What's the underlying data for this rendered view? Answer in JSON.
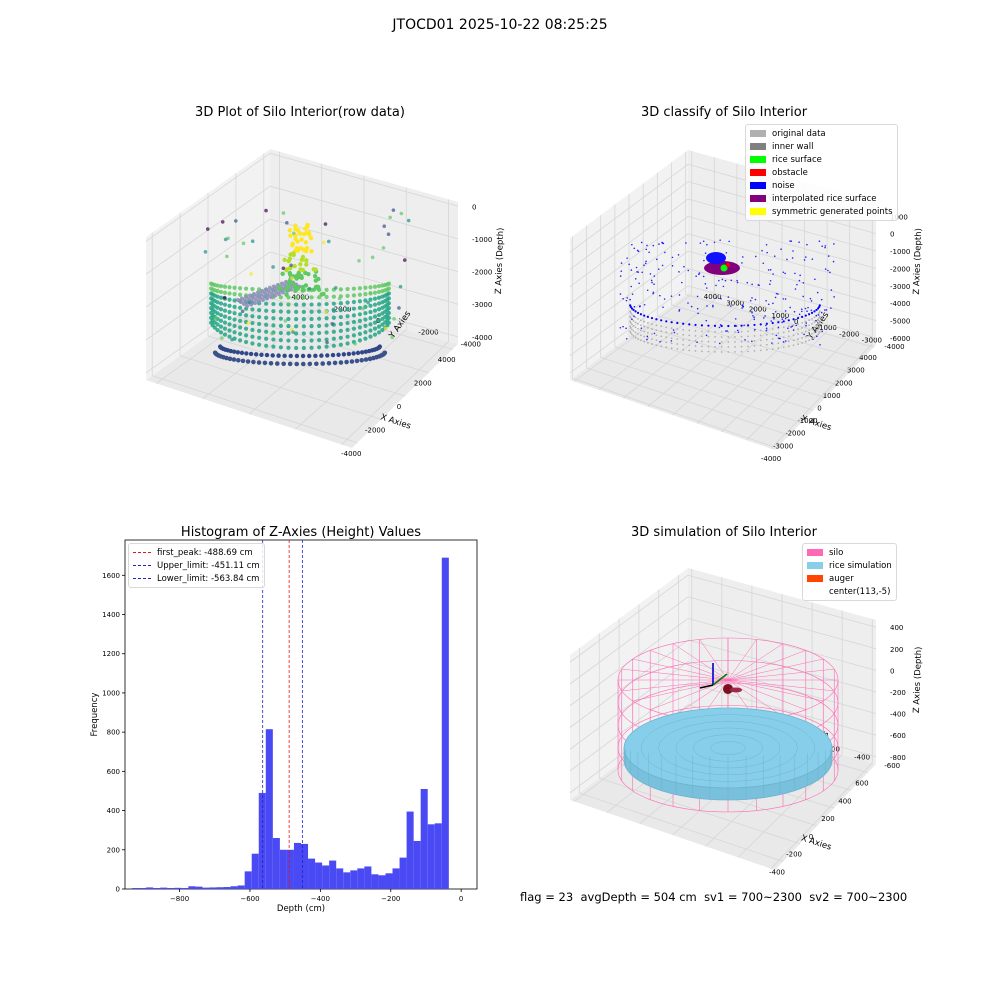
{
  "figure": {
    "title": "JTOCD01 2025-10-22 08:25:25",
    "status": {
      "flag": "flag = 23",
      "avg_depth": "avgDepth = 504 cm",
      "sv1": "sv1 = 700~2300",
      "sv2": "sv2 = 700~2300"
    }
  },
  "colors": {
    "histogram": "#4a4af4",
    "first_peak": "#e8141a",
    "limits": "#2020c8",
    "pane": "#f2f2f2",
    "silo": "#ff69b4",
    "rice": "#87ceeb",
    "auger": "#ff4500"
  },
  "chart_data": [
    {
      "type": "scatter",
      "title": "3D Plot of Silo Interior(row data)",
      "xlabel": "X Axies",
      "ylabel": "Y Axies",
      "zlabel": "Z Axies (Depth)",
      "x_ticks": [
        "-4000",
        "-2000",
        "0",
        "2000",
        "4000"
      ],
      "y_ticks": [
        "-4000",
        "-2000",
        "0",
        "2000",
        "4000"
      ],
      "z_ticks": [
        "0",
        "-1000",
        "-2000",
        "-3000",
        "-4000"
      ],
      "colormap": "viridis"
    },
    {
      "type": "scatter",
      "title": "3D classify of Silo Interior",
      "xlabel": "X Axies",
      "ylabel": "Y Axies",
      "zlabel": "Z Axies (Depth)",
      "x_ticks": [
        "-4000",
        "-3000",
        "-2000",
        "-1000",
        "0",
        "1000",
        "2000",
        "3000",
        "4000"
      ],
      "y_ticks": [
        "-4000",
        "-3000",
        "-2000",
        "-1000",
        "0",
        "1000",
        "2000",
        "3000",
        "4000"
      ],
      "z_ticks": [
        "1000",
        "0",
        "-1000",
        "-2000",
        "-3000",
        "-4000",
        "-5000",
        "-6000"
      ],
      "legend_position": "upper right",
      "legend": [
        {
          "label": "original data",
          "color": "#b0b0b0"
        },
        {
          "label": "inner wall",
          "color": "#808080"
        },
        {
          "label": "rice surface",
          "color": "#00ff00"
        },
        {
          "label": "obstacle",
          "color": "#ff0000"
        },
        {
          "label": "noise",
          "color": "#0000ff"
        },
        {
          "label": "interpolated rice surface",
          "color": "#800080"
        },
        {
          "label": "symmetric generated points",
          "color": "#ffff00"
        }
      ]
    },
    {
      "type": "bar",
      "title": "Histogram of Z-Axies (Height) Values",
      "xlabel": "Depth (cm)",
      "ylabel": "Frequency",
      "xlim": [
        -955,
        45
      ],
      "ylim": [
        0,
        1780
      ],
      "x_ticks": [
        -800,
        -600,
        -400,
        -200,
        0
      ],
      "y_ticks": [
        0,
        200,
        400,
        600,
        800,
        1000,
        1200,
        1400,
        1600
      ],
      "bin_width": 20,
      "bin_start": -935,
      "values": [
        5,
        5,
        8,
        5,
        7,
        5,
        6,
        5,
        14,
        12,
        7,
        8,
        9,
        10,
        14,
        18,
        90,
        180,
        490,
        815,
        260,
        200,
        200,
        235,
        230,
        155,
        135,
        120,
        145,
        105,
        85,
        95,
        105,
        115,
        75,
        70,
        80,
        105,
        160,
        395,
        245,
        510,
        330,
        335,
        1690
      ],
      "reference_lines": [
        {
          "name": "first_peak",
          "label": "first_peak: -488.69 cm",
          "x": -488.69,
          "color": "#e8141a"
        },
        {
          "name": "upper",
          "label": "Upper_limit: -451.11 cm",
          "x": -451.11,
          "color": "#2020c8"
        },
        {
          "name": "lower",
          "label": "Lower_limit: -563.84 cm",
          "x": -563.84,
          "color": "#2020c8"
        }
      ],
      "legend_position": "upper left"
    },
    {
      "type": "scatter",
      "title": "3D simulation of Silo Interior",
      "xlabel": "X Axies",
      "ylabel": "Y Axies",
      "zlabel": "Z Axies (Depth)",
      "x_ticks": [
        "-400",
        "-200",
        "0",
        "200",
        "400",
        "600"
      ],
      "y_ticks": [
        "-600",
        "-400",
        "-200",
        "0",
        "200",
        "400",
        "600"
      ],
      "z_ticks": [
        "400",
        "200",
        "0",
        "-200",
        "-400",
        "-600",
        "-800"
      ],
      "legend_position": "upper right",
      "legend": [
        {
          "label": "silo",
          "color": "#ff69b4"
        },
        {
          "label": "rice simulation",
          "color": "#87ceeb"
        },
        {
          "label": "auger",
          "color": "#ff4500"
        },
        {
          "label": "center(113,-5)",
          "color": ""
        }
      ]
    }
  ]
}
